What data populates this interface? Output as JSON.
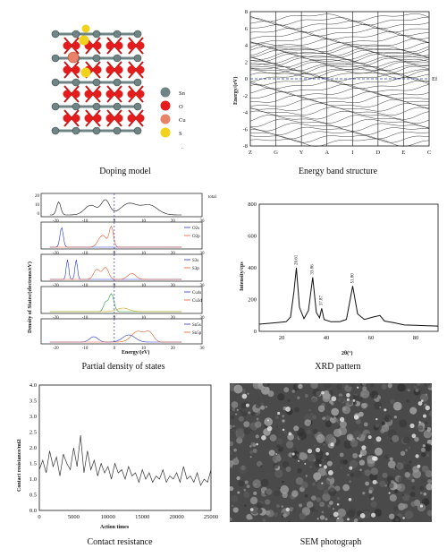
{
  "figure": {
    "captions": {
      "doping": "Doping model",
      "band": "Energy band structure",
      "pdos": "Partial density of states",
      "xrd": "XRD pattern",
      "contact": "Contact resistance",
      "sem": "SEM photograph"
    }
  },
  "doping_model": {
    "legend": [
      {
        "label": "Sn",
        "color": "#6f8484"
      },
      {
        "label": "O",
        "color": "#e41c1c"
      },
      {
        "label": "Cu",
        "color": "#e8836a"
      },
      {
        "label": "S",
        "color": "#f2d21a"
      }
    ],
    "stray_mark": "."
  },
  "band_structure": {
    "ylabel": "Energy/(eV)",
    "ylim": [
      -8,
      8
    ],
    "yticks": [
      "8",
      "6",
      "4",
      "2",
      "0",
      "-2",
      "-4",
      "-6",
      "-8"
    ],
    "kpoints": [
      "Z",
      "G",
      "Y",
      "A",
      "I",
      "D",
      "E",
      "C"
    ],
    "fermi_label": "Ef"
  },
  "pdos": {
    "ylabel": "Density of States/(electrons/eV)",
    "xlabel": "Energy/(eV)",
    "xticks": [
      "-20",
      "-10",
      "0",
      "10",
      "20",
      "30"
    ],
    "total_label": "total",
    "total_yticks": [
      "20",
      "10",
      "0"
    ],
    "legends": [
      [
        "O2s",
        "O2p"
      ],
      [
        "S3s",
        "S3p"
      ],
      [
        "Cu4s",
        "Cu3d"
      ],
      [
        "Sn5s",
        "Sn5p"
      ]
    ],
    "legend_colors": [
      "#2236c9",
      "#e4572a"
    ]
  },
  "chart_data": [
    {
      "type": "line",
      "title": "",
      "xlabel": "2θ(°)",
      "ylabel": "Intensity/cps",
      "xlim": [
        10,
        90
      ],
      "ylim": [
        0,
        800
      ],
      "yticks": [
        "800",
        "600",
        "400",
        "200",
        "0"
      ],
      "xticks": [
        "20",
        "40",
        "60",
        "80"
      ],
      "peak_labels": [
        "26.61",
        "33.86",
        "37.87",
        "51.80"
      ],
      "peaks": [
        {
          "x": 26.61,
          "y": 400
        },
        {
          "x": 33.86,
          "y": 340
        },
        {
          "x": 37.87,
          "y": 145
        },
        {
          "x": 51.8,
          "y": 285
        }
      ],
      "x": [
        10,
        14,
        18,
        22,
        24,
        25.5,
        26.6,
        28,
        30,
        32,
        33.9,
        35.5,
        37,
        37.9,
        39,
        42,
        46,
        49,
        51.8,
        54,
        57,
        61,
        64,
        66,
        70,
        75,
        80,
        85,
        90
      ],
      "y": [
        45,
        50,
        55,
        60,
        90,
        250,
        400,
        150,
        80,
        130,
        340,
        120,
        85,
        145,
        75,
        60,
        60,
        75,
        285,
        110,
        75,
        90,
        100,
        65,
        55,
        40,
        38,
        35,
        33
      ]
    },
    {
      "type": "line",
      "title": "",
      "xlabel": "Action times",
      "ylabel": "Contact resistance/mΩ",
      "xlim": [
        0,
        25000
      ],
      "ylim": [
        0.0,
        4.0
      ],
      "xticks": [
        "0",
        "5000",
        "10000",
        "15000",
        "20000",
        "25000"
      ],
      "yticks": [
        "4.0",
        "3.5",
        "3.0",
        "2.5",
        "2.0",
        "1.5",
        "1.0",
        "0.5",
        "0.0"
      ],
      "x": [
        0,
        500,
        1000,
        1500,
        2000,
        2500,
        3000,
        3500,
        4000,
        4500,
        5000,
        5500,
        6000,
        6500,
        7000,
        7500,
        8000,
        8500,
        9000,
        9500,
        10000,
        10500,
        11000,
        11500,
        12000,
        12500,
        13000,
        13500,
        14000,
        14500,
        15000,
        15500,
        16000,
        16500,
        17000,
        17500,
        18000,
        18500,
        19000,
        19500,
        20000,
        20500,
        21000,
        21500,
        22000,
        22500,
        23000,
        23500,
        24000,
        24500,
        25000
      ],
      "y": [
        1.3,
        1.6,
        1.2,
        1.9,
        1.4,
        1.7,
        1.1,
        1.8,
        1.5,
        1.3,
        2.0,
        1.4,
        2.4,
        1.2,
        1.9,
        1.3,
        1.6,
        1.1,
        1.5,
        1.2,
        1.4,
        1.0,
        1.5,
        1.2,
        1.3,
        1.0,
        1.4,
        1.1,
        1.2,
        0.9,
        1.3,
        1.0,
        1.2,
        0.9,
        1.1,
        1.0,
        1.3,
        0.9,
        1.1,
        1.0,
        1.2,
        0.9,
        1.4,
        1.0,
        1.1,
        0.9,
        1.2,
        0.8,
        1.0,
        0.9,
        1.3
      ]
    }
  ]
}
